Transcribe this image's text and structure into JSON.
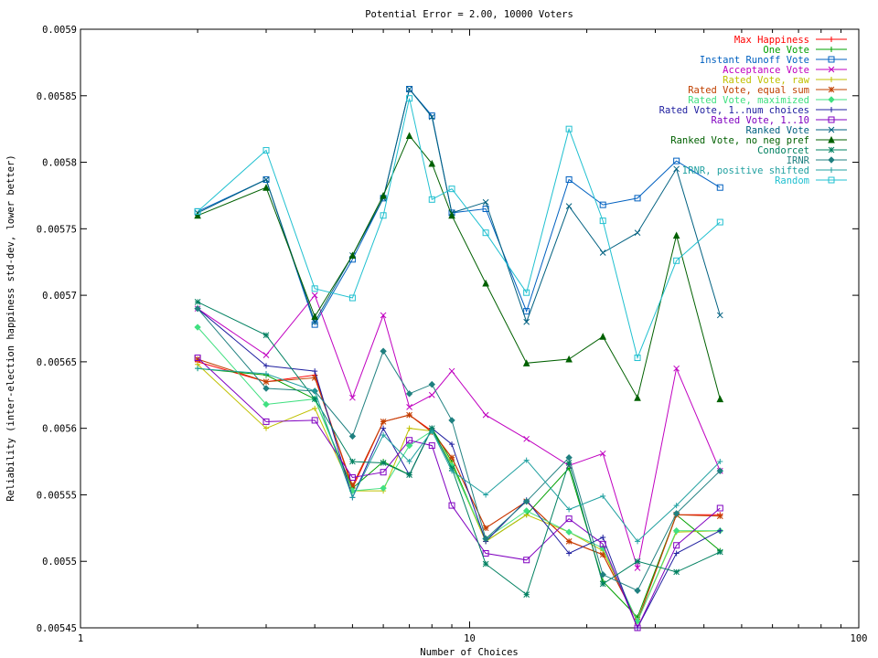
{
  "chart_data": {
    "type": "line",
    "title": "Potential Error = 2.00, 10000 Voters",
    "xlabel": "Number of Choices",
    "ylabel": "Reliability (inter-election happiness std-dev, lower better)",
    "xscale": "log",
    "xlim": [
      1,
      100
    ],
    "ylim": [
      0.00545,
      0.0059
    ],
    "x_ticks": [
      1,
      10,
      100
    ],
    "y_ticks": [
      0.00545,
      0.0055,
      0.00555,
      0.0056,
      0.00565,
      0.0057,
      0.00575,
      0.0058,
      0.00585,
      0.0059
    ],
    "y_tick_labels": [
      "0.00545",
      "0.0055",
      "0.00555",
      "0.0056",
      "0.00565",
      "0.0057",
      "0.00575",
      "0.0058",
      "0.00585",
      "0.0059"
    ],
    "grid": false,
    "legend_position": "top-right",
    "x": [
      2,
      3,
      4,
      5,
      6,
      7,
      8,
      9,
      11,
      14,
      18,
      22,
      27,
      34,
      44
    ],
    "series": [
      {
        "name": "Max Happiness",
        "color": "#ff0000",
        "marker": "plus",
        "values": [
          0.00565,
          0.005635,
          0.00564,
          0.005555,
          0.005605,
          0.00561,
          0.005598,
          0.005578,
          0.005525,
          0.005545,
          0.005515,
          0.005505,
          0.005455,
          0.005535,
          0.005535
        ]
      },
      {
        "name": "One Vote",
        "color": "#00a000",
        "marker": "plus",
        "values": [
          0.005645,
          0.00564,
          0.005622,
          0.005555,
          0.005575,
          0.005565,
          0.0056,
          0.005575,
          0.005515,
          0.005535,
          0.00557,
          0.005485,
          0.005458,
          0.005535,
          0.005508
        ]
      },
      {
        "name": "Instant Runoff Vote",
        "color": "#0060c0",
        "marker": "square",
        "values": [
          0.005763,
          0.005787,
          0.005678,
          0.005727,
          0.005773,
          0.005855,
          0.005835,
          0.005762,
          0.005765,
          0.005688,
          0.005787,
          0.005768,
          0.005773,
          0.005801,
          0.005781
        ]
      },
      {
        "name": "Acceptance Vote",
        "color": "#c000c0",
        "marker": "cross",
        "values": [
          0.00569,
          0.005655,
          0.0057,
          0.005623,
          0.005685,
          0.005616,
          0.005625,
          0.005643,
          0.00561,
          0.005592,
          0.005572,
          0.005581,
          0.005495,
          0.005645,
          0.005568
        ]
      },
      {
        "name": "Rated Vote, raw",
        "color": "#c0c000",
        "marker": "plus",
        "values": [
          0.005648,
          0.0056,
          0.005615,
          0.005553,
          0.005553,
          0.0056,
          0.005598,
          0.005573,
          0.005515,
          0.005535,
          0.005522,
          0.005508,
          0.005455,
          0.005522,
          0.005523
        ]
      },
      {
        "name": "Rated Vote, equal sum",
        "color": "#c04000",
        "marker": "star",
        "values": [
          0.005652,
          0.005635,
          0.005638,
          0.005557,
          0.005605,
          0.00561,
          0.005597,
          0.005578,
          0.005525,
          0.005545,
          0.005515,
          0.005505,
          0.005455,
          0.005535,
          0.005534
        ]
      },
      {
        "name": "Rated Vote, maximized",
        "color": "#40e080",
        "marker": "diamond",
        "values": [
          0.005676,
          0.005618,
          0.005622,
          0.005553,
          0.005555,
          0.005587,
          0.005598,
          0.005572,
          0.005517,
          0.005538,
          0.005522,
          0.00551,
          0.005455,
          0.005523,
          0.005523
        ]
      },
      {
        "name": "Rated Vote, 1..num choices",
        "color": "#2020a0",
        "marker": "plus",
        "values": [
          0.00569,
          0.005647,
          0.005643,
          0.005548,
          0.0056,
          0.005565,
          0.0056,
          0.005588,
          0.005515,
          0.005546,
          0.005506,
          0.005518,
          0.00545,
          0.005506,
          0.005523
        ]
      },
      {
        "name": "Rated Vote, 1..10",
        "color": "#8000c0",
        "marker": "square",
        "values": [
          0.005653,
          0.005605,
          0.005606,
          0.005563,
          0.005567,
          0.005591,
          0.005587,
          0.005542,
          0.005506,
          0.005501,
          0.005532,
          0.005513,
          0.00545,
          0.005512,
          0.00554
        ]
      },
      {
        "name": "Ranked Vote",
        "color": "#006080",
        "marker": "cross",
        "values": [
          0.005762,
          0.005787,
          0.00568,
          0.00573,
          0.005773,
          0.005855,
          0.005834,
          0.005762,
          0.00577,
          0.00568,
          0.005767,
          0.005732,
          0.005747,
          0.005795,
          0.005685
        ]
      },
      {
        "name": "Ranked Vote, no neg pref",
        "color": "#006000",
        "marker": "triangle",
        "values": [
          0.00576,
          0.005781,
          0.005684,
          0.00573,
          0.005775,
          0.00582,
          0.005799,
          0.00576,
          0.005709,
          0.005649,
          0.005652,
          0.005669,
          0.005623,
          0.005745,
          0.005622
        ]
      },
      {
        "name": "Condorcet",
        "color": "#008060",
        "marker": "star",
        "values": [
          0.005695,
          0.00567,
          0.005622,
          0.005575,
          0.005574,
          0.005565,
          0.0056,
          0.00557,
          0.005498,
          0.005475,
          0.005574,
          0.005483,
          0.0055,
          0.005492,
          0.005507
        ]
      },
      {
        "name": "IRNR",
        "color": "#208080",
        "marker": "diamond",
        "values": [
          0.00569,
          0.00563,
          0.005628,
          0.005594,
          0.005658,
          0.005626,
          0.005633,
          0.005606,
          0.005517,
          0.005545,
          0.005578,
          0.00549,
          0.005478,
          0.005536,
          0.005568
        ]
      },
      {
        "name": "IRNR, positive shifted",
        "color": "#20a0a0",
        "marker": "plus",
        "values": [
          0.005645,
          0.005641,
          0.005628,
          0.005548,
          0.005595,
          0.005575,
          0.005598,
          0.005568,
          0.00555,
          0.005576,
          0.005539,
          0.005549,
          0.005515,
          0.005542,
          0.005575
        ]
      },
      {
        "name": "Random",
        "color": "#20c0d0",
        "marker": "square",
        "values": [
          0.005763,
          0.005809,
          0.005705,
          0.005698,
          0.00576,
          0.005848,
          0.005772,
          0.00578,
          0.005747,
          0.005702,
          0.005825,
          0.005756,
          0.005653,
          0.005726,
          0.005755
        ]
      }
    ]
  }
}
